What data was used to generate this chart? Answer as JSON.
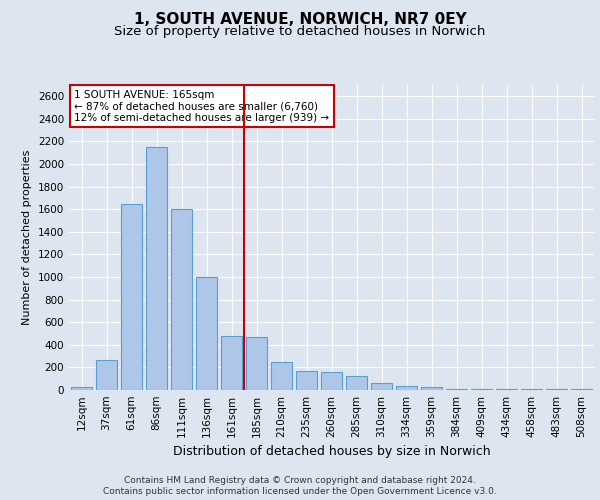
{
  "title": "1, SOUTH AVENUE, NORWICH, NR7 0EY",
  "subtitle": "Size of property relative to detached houses in Norwich",
  "xlabel": "Distribution of detached houses by size in Norwich",
  "ylabel": "Number of detached properties",
  "categories": [
    "12sqm",
    "37sqm",
    "61sqm",
    "86sqm",
    "111sqm",
    "136sqm",
    "161sqm",
    "185sqm",
    "210sqm",
    "235sqm",
    "260sqm",
    "285sqm",
    "310sqm",
    "334sqm",
    "359sqm",
    "384sqm",
    "409sqm",
    "434sqm",
    "458sqm",
    "483sqm",
    "508sqm"
  ],
  "values": [
    28,
    270,
    1650,
    2150,
    1600,
    1000,
    480,
    470,
    250,
    170,
    155,
    120,
    60,
    35,
    30,
    10,
    5,
    10,
    5,
    5,
    5
  ],
  "bar_color": "#aec6e8",
  "bar_edgecolor": "#5a9fd4",
  "bar_linewidth": 0.8,
  "vline_x": 6.5,
  "vline_color": "#cc0000",
  "annotation_title": "1 SOUTH AVENUE: 165sqm",
  "annotation_line1": "← 87% of detached houses are smaller (6,760)",
  "annotation_line2": "12% of semi-detached houses are larger (939) →",
  "annotation_box_facecolor": "#ffffff",
  "annotation_box_edgecolor": "#cc0000",
  "ylim": [
    0,
    2700
  ],
  "yticks": [
    0,
    200,
    400,
    600,
    800,
    1000,
    1200,
    1400,
    1600,
    1800,
    2000,
    2200,
    2400,
    2600
  ],
  "bg_color": "#dde6f0",
  "plot_bg_color": "#dde6f0",
  "grid_color": "#ffffff",
  "footer_line1": "Contains HM Land Registry data © Crown copyright and database right 2024.",
  "footer_line2": "Contains public sector information licensed under the Open Government Licence v3.0.",
  "title_fontsize": 11,
  "subtitle_fontsize": 9.5,
  "xlabel_fontsize": 9,
  "ylabel_fontsize": 8,
  "tick_fontsize": 7.5,
  "annotation_fontsize": 7.5,
  "footer_fontsize": 6.5
}
